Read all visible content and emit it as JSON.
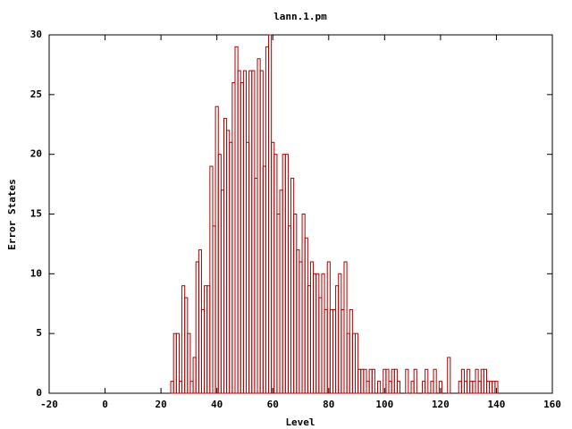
{
  "chart_data": {
    "type": "bar",
    "title": "lann.1.pm",
    "x_label": "Level",
    "y_label": "Error States",
    "color": "#b00000",
    "x": [
      24,
      25,
      26,
      27,
      28,
      29,
      30,
      31,
      32,
      33,
      34,
      35,
      36,
      37,
      38,
      39,
      40,
      41,
      42,
      43,
      44,
      45,
      46,
      47,
      48,
      49,
      50,
      51,
      52,
      53,
      54,
      55,
      56,
      57,
      58,
      59,
      60,
      61,
      62,
      63,
      64,
      65,
      66,
      67,
      68,
      69,
      70,
      71,
      72,
      73,
      74,
      75,
      76,
      77,
      78,
      79,
      80,
      81,
      82,
      83,
      84,
      85,
      86,
      87,
      88,
      89,
      90,
      91,
      92,
      93,
      94,
      95,
      96,
      97,
      98,
      99,
      100,
      101,
      102,
      103,
      104,
      105,
      106,
      107,
      108,
      109,
      110,
      111,
      112,
      113,
      114,
      115,
      116,
      117,
      118,
      119,
      120,
      121,
      122,
      123,
      124,
      125,
      126,
      127,
      128,
      129,
      130,
      131,
      132,
      133,
      134,
      135,
      136,
      137,
      138,
      139,
      140
    ],
    "values": [
      1,
      5,
      5,
      1,
      9,
      8,
      5,
      1,
      3,
      11,
      12,
      7,
      9,
      9,
      19,
      14,
      24,
      20,
      17,
      23,
      22,
      21,
      26,
      29,
      27,
      26,
      27,
      21,
      27,
      27,
      18,
      28,
      27,
      19,
      29,
      30,
      21,
      20,
      15,
      17,
      20,
      20,
      14,
      18,
      15,
      12,
      11,
      15,
      13,
      9,
      11,
      10,
      10,
      8,
      10,
      7,
      11,
      7,
      7,
      9,
      10,
      7,
      11,
      5,
      7,
      5,
      5,
      2,
      2,
      2,
      1,
      2,
      2,
      0,
      1,
      0,
      2,
      2,
      1,
      2,
      2,
      1,
      0,
      0,
      2,
      0,
      1,
      2,
      0,
      0,
      1,
      2,
      0,
      1,
      2,
      0,
      1,
      0,
      0,
      3,
      0,
      0,
      0,
      1,
      2,
      1,
      2,
      1,
      1,
      2,
      1,
      2,
      2,
      1,
      1,
      1,
      1
    ],
    "xlim": [
      -20,
      160
    ],
    "xticks": [
      -20,
      0,
      20,
      40,
      60,
      80,
      100,
      120,
      140,
      160
    ],
    "ylim": [
      0,
      30
    ],
    "yticks": [
      0,
      5,
      10,
      15,
      20,
      25,
      30
    ]
  }
}
